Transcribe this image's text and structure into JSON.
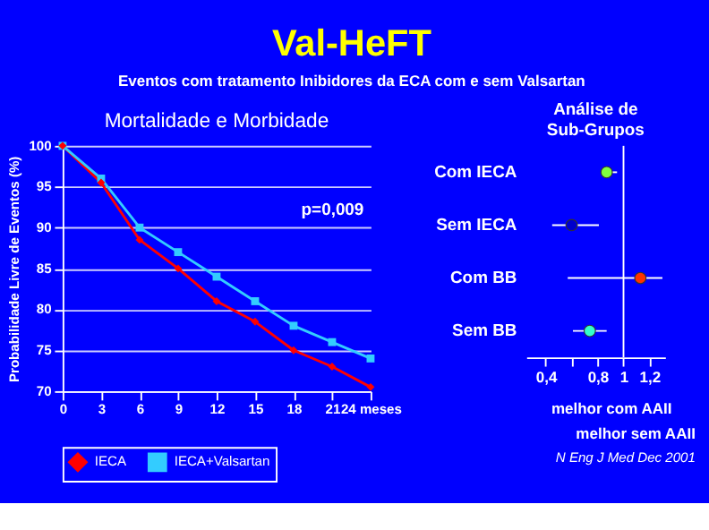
{
  "chart_data": [
    {
      "type": "line",
      "title": "Val-HeFT",
      "subtitle": "Eventos com tratamento Inibidores da ECA com e sem Valsartan",
      "ylabel": "Probabilidade Livre de Eventos (%)",
      "annotations": [
        "Mortalidade e Morbidade",
        "p=0,009"
      ],
      "x": [
        0,
        3,
        6,
        9,
        12,
        15,
        18,
        21,
        24
      ],
      "xlim": [
        0,
        24
      ],
      "xticks": [
        0,
        3,
        6,
        9,
        12,
        15,
        18,
        21,
        {
          "value": 24,
          "label": "24 meses"
        }
      ],
      "ylim": [
        70,
        100
      ],
      "yticks": [
        70,
        75,
        80,
        85,
        90,
        95,
        100
      ],
      "grid": "y",
      "legend": "bottom",
      "line_style": "solid",
      "series": [
        {
          "name": "IECA",
          "color": "#ff0000",
          "marker": "diamond",
          "values": [
            100,
            95.5,
            88.5,
            85,
            81,
            78.5,
            75,
            73,
            70.5
          ]
        },
        {
          "name": "IECA+Valsartan",
          "color": "#33ccff",
          "marker": "square",
          "values": [
            100,
            96,
            90,
            87,
            84,
            81,
            78,
            76,
            74
          ]
        }
      ]
    },
    {
      "type": "scatter",
      "orientation": "horizontal",
      "title": "Análise de Sub-Grupos",
      "categories": [
        "Com IECA",
        "Sem IECA",
        "Com BB",
        "Sem BB"
      ],
      "values": [
        0.87,
        0.6,
        1.13,
        0.74
      ],
      "errors": [
        [
          0.83,
          0.95
        ],
        [
          0.45,
          0.81
        ],
        [
          0.57,
          1.3
        ],
        [
          0.61,
          0.87
        ]
      ],
      "colors": [
        "#80ff40",
        "#0000cc",
        "#ff3300",
        "#33ffcc"
      ],
      "marker": "circle",
      "xlim": [
        0.25,
        1.32
      ],
      "xticks": [
        {
          "value": 0.4,
          "label": "0,4"
        },
        {
          "value": 0.6,
          "label": null
        },
        {
          "value": 0.8,
          "label": "0,8"
        },
        1,
        {
          "value": 1.2,
          "label": "1,2"
        }
      ],
      "ref_lines": [
        {
          "axis": "x",
          "value": 1,
          "color": "#ffffff"
        }
      ],
      "annotations": [
        "melhor com AAII",
        "melhor sem AAII",
        "N Eng J Med Dec 2001"
      ]
    }
  ]
}
